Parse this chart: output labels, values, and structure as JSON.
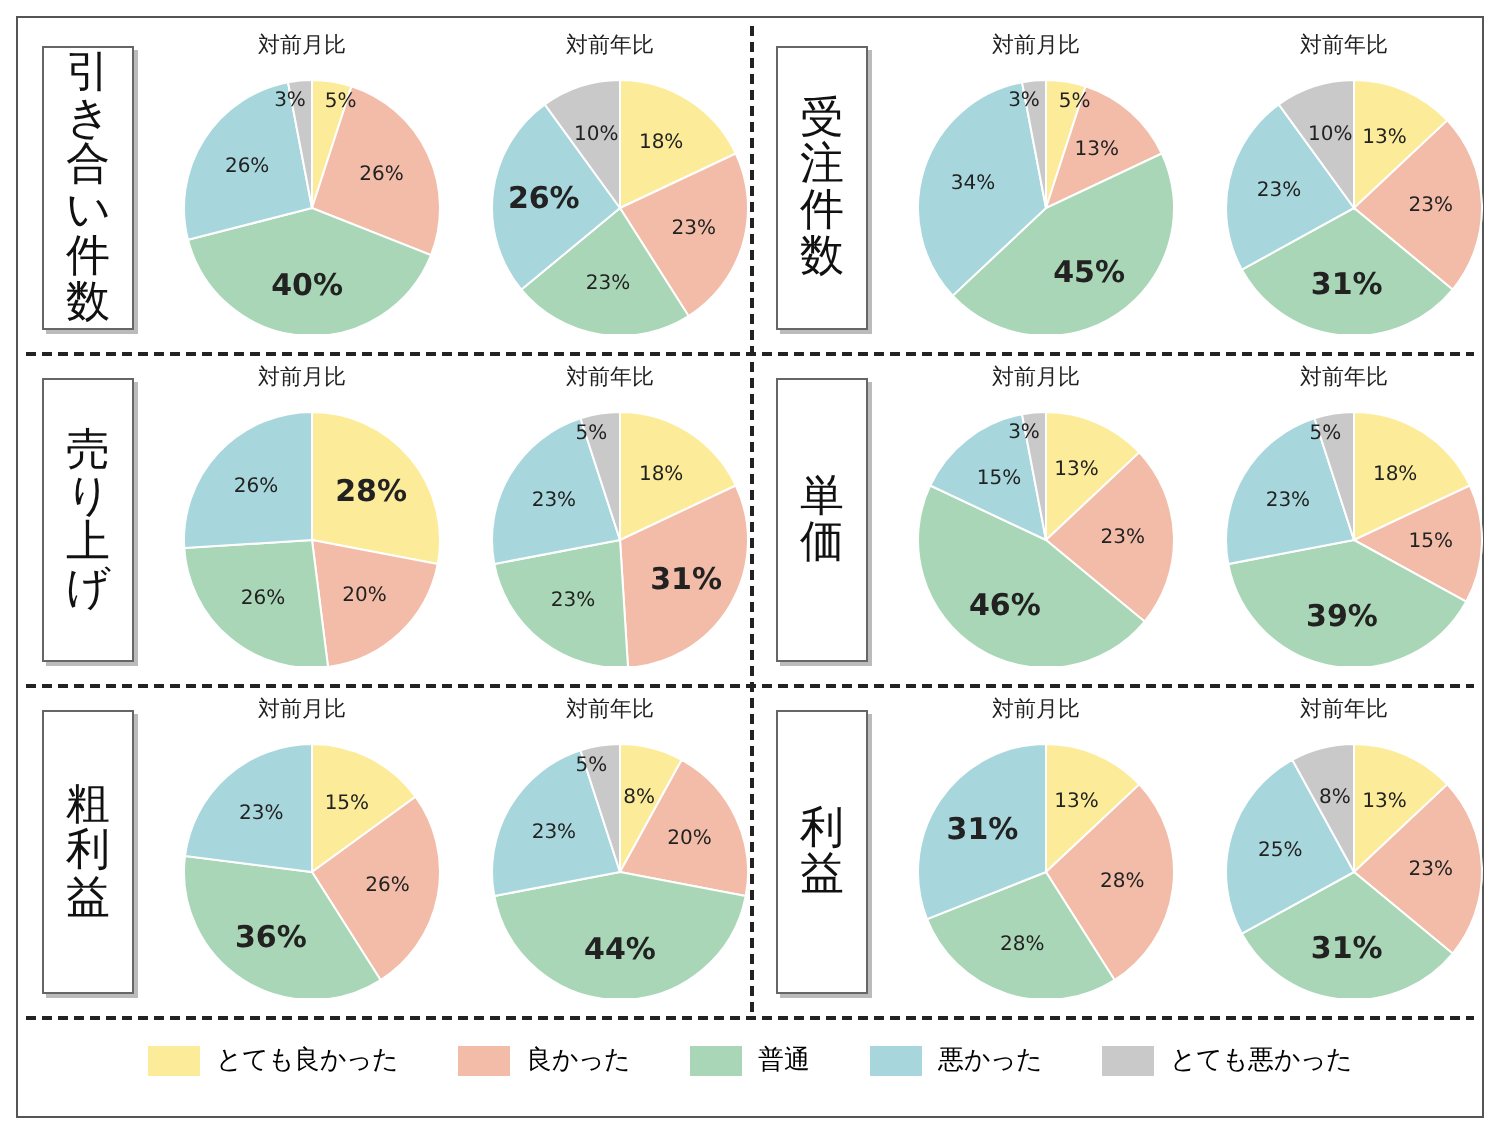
{
  "chart_data": [
    {
      "type": "other",
      "title": "引き合い件数"
    },
    {
      "type": "pie",
      "title": "対前月比",
      "categories": [
        "とても良かった",
        "良かった",
        "普通",
        "悪かった",
        "とても悪かった"
      ],
      "values": [
        5,
        26,
        40,
        26,
        3
      ],
      "value_labels": [
        "5%",
        "26%",
        "40%",
        "26%",
        "3%"
      ],
      "colors": [
        "#fcec9a",
        "#f2bca9",
        "#a9d6b6",
        "#a7d7dd",
        "#c9c9c9"
      ],
      "legend": "bottom"
    },
    {
      "type": "pie",
      "title": "対前年比",
      "values": [
        18,
        23,
        23,
        26,
        10
      ],
      "value_labels": [
        "18%",
        "23%",
        "23%",
        "26%",
        "10%"
      ],
      "colors": [
        "#fcec9a",
        "#f2bca9",
        "#a9d6b6",
        "#a7d7dd",
        "#c9c9c9"
      ]
    },
    {
      "type": "other",
      "title": "受注件数"
    },
    {
      "type": "pie",
      "title": "対前月比",
      "values": [
        5,
        13,
        45,
        34,
        3
      ],
      "value_labels": [
        "5%",
        "13%",
        "45%",
        "34%",
        "3%"
      ],
      "colors": [
        "#fcec9a",
        "#f2bca9",
        "#a9d6b6",
        "#a7d7dd",
        "#c9c9c9"
      ]
    },
    {
      "type": "pie",
      "title": "対前年比",
      "values": [
        13,
        23,
        31,
        23,
        10
      ],
      "value_labels": [
        "13%",
        "23%",
        "31%",
        "23%",
        "10%"
      ],
      "colors": [
        "#fcec9a",
        "#f2bca9",
        "#a9d6b6",
        "#a7d7dd",
        "#c9c9c9"
      ]
    },
    {
      "type": "other",
      "title": "売り上げ"
    },
    {
      "type": "pie",
      "title": "対前月比",
      "values": [
        28,
        20,
        26,
        26
      ],
      "value_labels": [
        "28%",
        "20%",
        "26%",
        "26%"
      ],
      "colors": [
        "#fcec9a",
        "#f2bca9",
        "#a9d6b6",
        "#a7d7dd"
      ]
    },
    {
      "type": "pie",
      "title": "対前年比",
      "values": [
        18,
        31,
        23,
        23,
        5
      ],
      "value_labels": [
        "18%",
        "31%",
        "23%",
        "23%",
        "5%"
      ],
      "colors": [
        "#fcec9a",
        "#f2bca9",
        "#a9d6b6",
        "#a7d7dd",
        "#c9c9c9"
      ]
    },
    {
      "type": "other",
      "title": "単価"
    },
    {
      "type": "pie",
      "title": "対前月比",
      "values": [
        13,
        23,
        46,
        15,
        3
      ],
      "value_labels": [
        "13%",
        "23%",
        "46%",
        "15%",
        "3%"
      ],
      "colors": [
        "#fcec9a",
        "#f2bca9",
        "#a9d6b6",
        "#a7d7dd",
        "#c9c9c9"
      ]
    },
    {
      "type": "pie",
      "title": "対前年比",
      "values": [
        18,
        15,
        39,
        23,
        5
      ],
      "value_labels": [
        "18%",
        "15%",
        "39%",
        "23%",
        "5%"
      ],
      "colors": [
        "#fcec9a",
        "#f2bca9",
        "#a9d6b6",
        "#a7d7dd",
        "#c9c9c9"
      ]
    },
    {
      "type": "other",
      "title": "粗利益"
    },
    {
      "type": "pie",
      "title": "対前月比",
      "values": [
        15,
        26,
        36,
        23
      ],
      "value_labels": [
        "15%",
        "26%",
        "36%",
        "23%"
      ],
      "colors": [
        "#fcec9a",
        "#f2bca9",
        "#a9d6b6",
        "#a7d7dd"
      ]
    },
    {
      "type": "pie",
      "title": "対前年比",
      "values": [
        8,
        20,
        44,
        23,
        5
      ],
      "value_labels": [
        "8%",
        "20%",
        "44%",
        "23%",
        "5%"
      ],
      "colors": [
        "#fcec9a",
        "#f2bca9",
        "#a9d6b6",
        "#a7d7dd",
        "#c9c9c9"
      ]
    },
    {
      "type": "other",
      "title": "利益"
    },
    {
      "type": "pie",
      "title": "対前月比",
      "values": [
        13,
        28,
        28,
        31
      ],
      "value_labels": [
        "13%",
        "28%",
        "28%",
        "31%"
      ],
      "colors": [
        "#fcec9a",
        "#f2bca9",
        "#a9d6b6",
        "#a7d7dd"
      ]
    },
    {
      "type": "pie",
      "title": "対前年比",
      "values": [
        13,
        23,
        31,
        25,
        8
      ],
      "value_labels": [
        "13%",
        "23%",
        "31%",
        "25%",
        "8%"
      ],
      "colors": [
        "#fcec9a",
        "#f2bca9",
        "#a9d6b6",
        "#a7d7dd",
        "#c9c9c9"
      ]
    }
  ]
}
